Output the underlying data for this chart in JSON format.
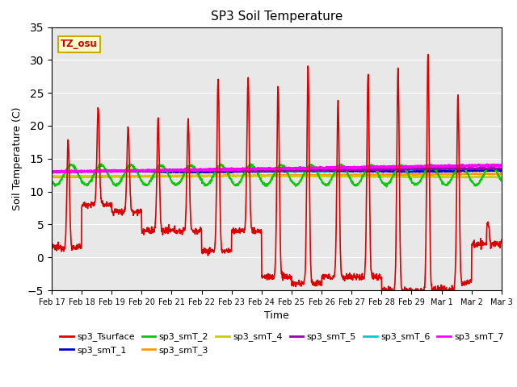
{
  "title": "SP3 Soil Temperature",
  "xlabel": "Time",
  "ylabel": "Soil Temperature (C)",
  "ylim": [
    -5,
    35
  ],
  "xlim": [
    0,
    15
  ],
  "annotation_text": "TZ_osu",
  "annotation_color": "#cc0000",
  "annotation_bg": "#ffffcc",
  "annotation_border": "#ccaa00",
  "plot_bg": "#e8e8e8",
  "fig_bg": "#ffffff",
  "grid_color": "#ffffff",
  "series_colors": {
    "sp3_Tsurface": "#dd0000",
    "sp3_smT_1": "#0000cc",
    "sp3_smT_2": "#00cc00",
    "sp3_smT_3": "#ff9900",
    "sp3_smT_4": "#cccc00",
    "sp3_smT_5": "#9900aa",
    "sp3_smT_6": "#00cccc",
    "sp3_smT_7": "#ff00ff"
  },
  "x_tick_labels": [
    "Feb 17",
    "Feb 18",
    "Feb 19",
    "Feb 20",
    "Feb 21",
    "Feb 22",
    "Feb 23",
    "Feb 24",
    "Feb 25",
    "Feb 26",
    "Feb 27",
    "Feb 28",
    "Feb 29",
    "Mar 1",
    "Mar 2",
    "Mar 3"
  ],
  "legend_order": [
    "sp3_Tsurface",
    "sp3_smT_1",
    "sp3_smT_2",
    "sp3_smT_3",
    "sp3_smT_4",
    "sp3_smT_5",
    "sp3_smT_6",
    "sp3_smT_7"
  ]
}
